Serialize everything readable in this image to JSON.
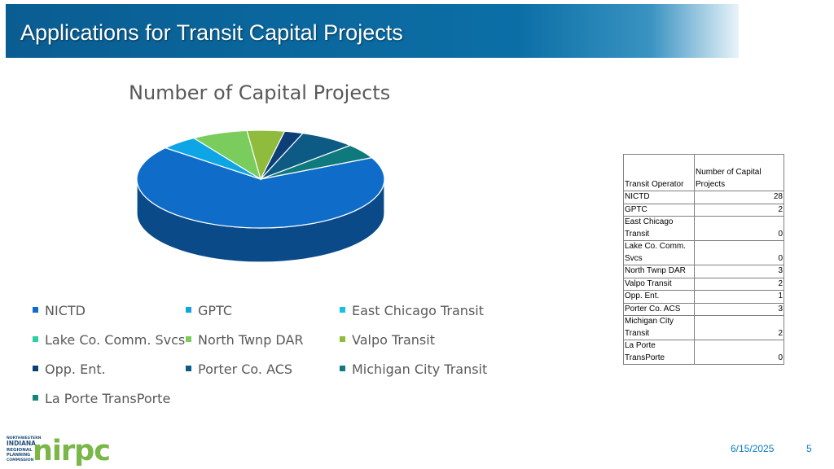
{
  "slide": {
    "title": "Applications for Transit Capital Projects",
    "date": "6/15/2025",
    "page_number": "5"
  },
  "chart_data": {
    "type": "pie",
    "title": "Number of Capital Projects",
    "legend_position": "bottom",
    "categories": [
      "NICTD",
      "GPTC",
      "East Chicago Transit",
      "Lake Co. Comm. Svcs",
      "North Twnp DAR",
      "Valpo Transit",
      "Opp. Ent.",
      "Porter Co. ACS",
      "Michigan City Transit",
      "La Porte TransPorte"
    ],
    "values": [
      28,
      2,
      0,
      0,
      3,
      2,
      1,
      3,
      2,
      0
    ],
    "colors": [
      "#0f6dc9",
      "#0ea5e6",
      "#16c1e3",
      "#2bd1a1",
      "#7acc5c",
      "#8fbc3c",
      "#0c3f78",
      "#0d5a84",
      "#0f7a7d",
      "#13877a"
    ]
  },
  "table": {
    "headers": [
      "Transit Operator",
      "Number of Capital Projects"
    ],
    "rows": [
      {
        "operator": "NICTD",
        "count": "28"
      },
      {
        "operator": "GPTC",
        "count": "2"
      },
      {
        "operator": "East Chicago Transit",
        "count": "0"
      },
      {
        "operator": "Lake Co. Comm. Svcs",
        "count": "0"
      },
      {
        "operator": "North Twnp DAR",
        "count": "3"
      },
      {
        "operator": "Valpo Transit",
        "count": "2"
      },
      {
        "operator": "Opp. Ent.",
        "count": "1"
      },
      {
        "operator": "Porter Co. ACS",
        "count": "3"
      },
      {
        "operator": "Michigan City Transit",
        "count": "2"
      },
      {
        "operator": "La Porte TransPorte",
        "count": "0"
      }
    ]
  },
  "logo": {
    "small_text": [
      "NORTHWESTERN",
      "INDIANA",
      "REGIONAL",
      "PLANNING",
      "COMMISSION"
    ],
    "mark": "nirpc",
    "text_color": "#1d4e7a",
    "mark_color": "#7ab648"
  }
}
